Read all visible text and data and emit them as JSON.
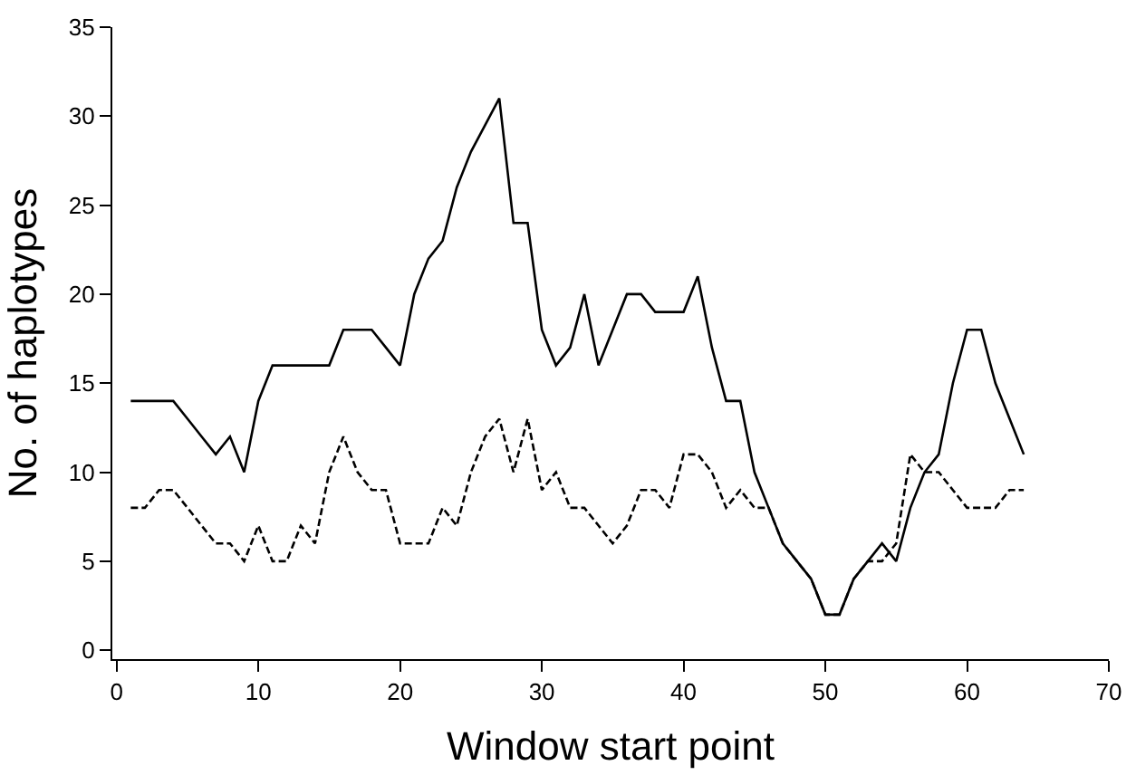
{
  "chart_data": {
    "type": "line",
    "xlabel": "Window start point",
    "ylabel": "No. of haplotypes",
    "x": [
      1,
      2,
      3,
      4,
      5,
      6,
      7,
      8,
      9,
      10,
      11,
      12,
      13,
      14,
      15,
      16,
      17,
      18,
      19,
      20,
      21,
      22,
      23,
      24,
      25,
      26,
      27,
      28,
      29,
      30,
      31,
      32,
      33,
      34,
      35,
      36,
      37,
      38,
      39,
      40,
      41,
      42,
      43,
      44,
      45,
      46,
      47,
      48,
      49,
      50,
      51,
      52,
      53,
      54,
      55,
      56,
      57,
      58,
      59,
      60,
      61,
      62,
      63,
      64
    ],
    "series": [
      {
        "color": "#000000",
        "line_style": "solid",
        "values": [
          14,
          14,
          14,
          14,
          13,
          12,
          11,
          12,
          10,
          14,
          16,
          16,
          16,
          16,
          16,
          18,
          18,
          18,
          17,
          16,
          20,
          22,
          23,
          26,
          28,
          29.5,
          31,
          24,
          24,
          18,
          16,
          17,
          20,
          16,
          18,
          20,
          20,
          19,
          19,
          19,
          21,
          17,
          14,
          14,
          10,
          8,
          6,
          5,
          4,
          2,
          2,
          4,
          5,
          6,
          5,
          8,
          10,
          11,
          15,
          18,
          18,
          15,
          13,
          11
        ]
      },
      {
        "color": "#000000",
        "line_style": "dashed",
        "values": [
          8,
          8,
          9,
          9,
          8,
          7,
          6,
          6,
          5,
          7,
          5,
          5,
          7,
          6,
          10,
          12,
          10,
          9,
          9,
          6,
          6,
          6,
          8,
          7,
          10,
          12,
          13,
          10,
          13,
          9,
          10,
          8,
          8,
          7,
          6,
          7,
          9,
          9,
          8,
          11,
          11,
          10,
          8,
          9,
          8,
          8,
          6,
          5,
          4,
          2,
          2,
          4,
          5,
          5,
          6,
          11,
          10,
          10,
          9,
          8,
          8,
          8,
          9,
          9
        ]
      }
    ],
    "xlim": [
      -0.3,
      70
    ],
    "xticks": [
      0,
      10,
      20,
      30,
      40,
      50,
      60,
      70
    ],
    "ylim": [
      -0.5,
      35
    ],
    "yticks": [
      0,
      5,
      10,
      15,
      20,
      25,
      30,
      35
    ],
    "grid": false,
    "legend": false,
    "marker": "none"
  }
}
